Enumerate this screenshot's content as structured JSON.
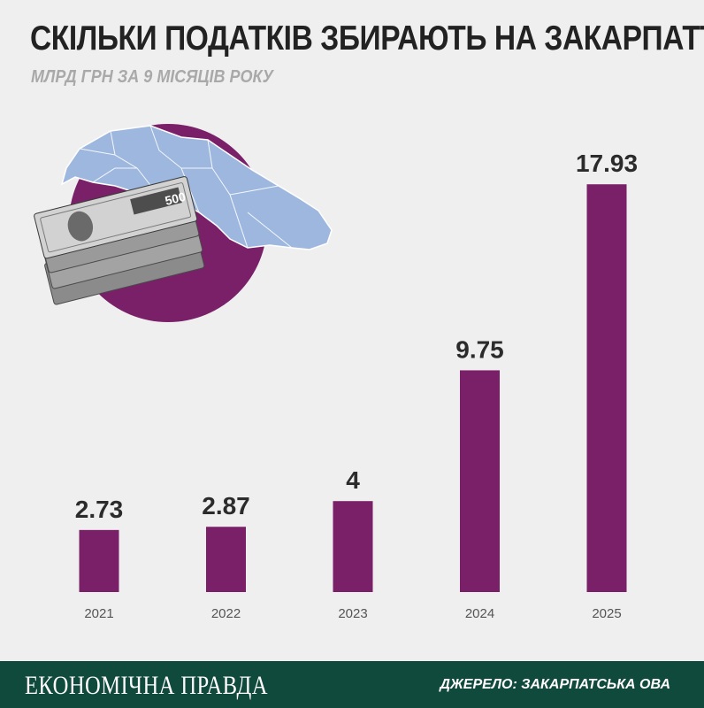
{
  "header": {
    "title": "СКІЛЬКИ ПОДАТКІВ ЗБИРАЮТЬ НА ЗАКАРПАТТІ",
    "subtitle": "МЛРД ГРН ЗА 9 МІСЯЦІВ РОКУ"
  },
  "illustration": {
    "banknote_denomination": "500"
  },
  "colors": {
    "bar": "#7a2068",
    "background": "#efefef",
    "footer": "#0f4a3c",
    "map": "#9db7de"
  },
  "chart_data": {
    "type": "bar",
    "title": "СКІЛЬКИ ПОДАТКІВ ЗБИРАЮТЬ НА ЗАКАРПАТТІ",
    "subtitle": "МЛРД ГРН ЗА 9 МІСЯЦІВ РОКУ",
    "categories": [
      "2021",
      "2022",
      "2023",
      "2024",
      "2025"
    ],
    "values": [
      2.73,
      2.87,
      4,
      9.75,
      17.93
    ],
    "value_labels": [
      "2.73",
      "2.87",
      "4",
      "9.75",
      "17.93"
    ],
    "ylim": [
      0,
      20
    ],
    "grid": false,
    "data_labels": true
  },
  "footer": {
    "brand": "ЕКОНОМІЧНА ПРАВДА",
    "source": "ДЖЕРЕЛО: ЗАКАРПАТСЬКА ОВА"
  }
}
